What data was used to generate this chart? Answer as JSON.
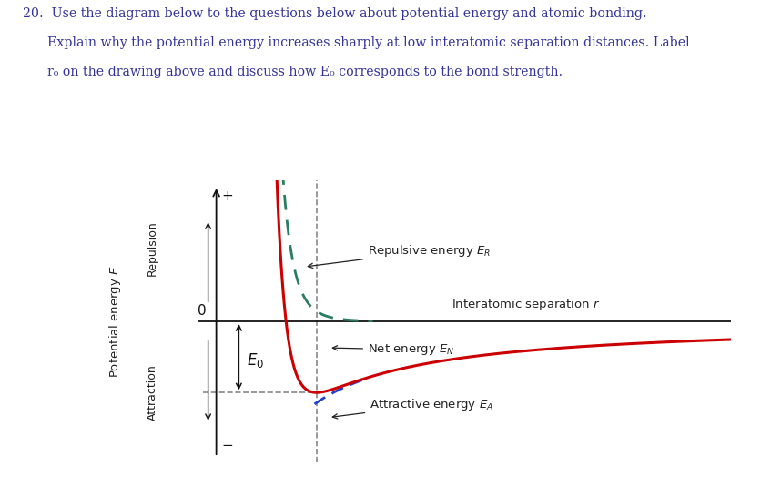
{
  "title_line1": "20.  Use the diagram below to the questions below about potential energy and atomic bonding.",
  "title_line2": "      Explain why the potential energy increases sharply at low interatomic separation distances. Label",
  "title_line3": "      r₀ on the drawing above and discuss how E₀ corresponds to the bond strength.",
  "background_color": "#ffffff",
  "ylabel_main": "Potential energy $E$",
  "ylabel_repulsion": "Repulsion",
  "ylabel_attraction": "Attraction",
  "xlabel": "Interatomic separation $r$",
  "plus_label": "+",
  "minus_label": "−",
  "zero_label": "0",
  "E0_label": "$E_0$",
  "repulsive_label": "Repulsive energy $E_R$",
  "net_label": "Net energy $E_N$",
  "attractive_label": "Attractive energy $E_A$",
  "repulsive_color": "#2a7d5f",
  "net_color": "#cc0000",
  "attractive_color": "#2244cc",
  "axis_color": "#111111",
  "text_color": "#333399",
  "annotation_color": "#222222",
  "A": 1.0,
  "m": 1.0,
  "B": 0.35,
  "n": 8.0,
  "xlim": [
    0.0,
    5.2
  ],
  "ylim": [
    -1.5,
    1.5
  ],
  "x_start": 0.42
}
